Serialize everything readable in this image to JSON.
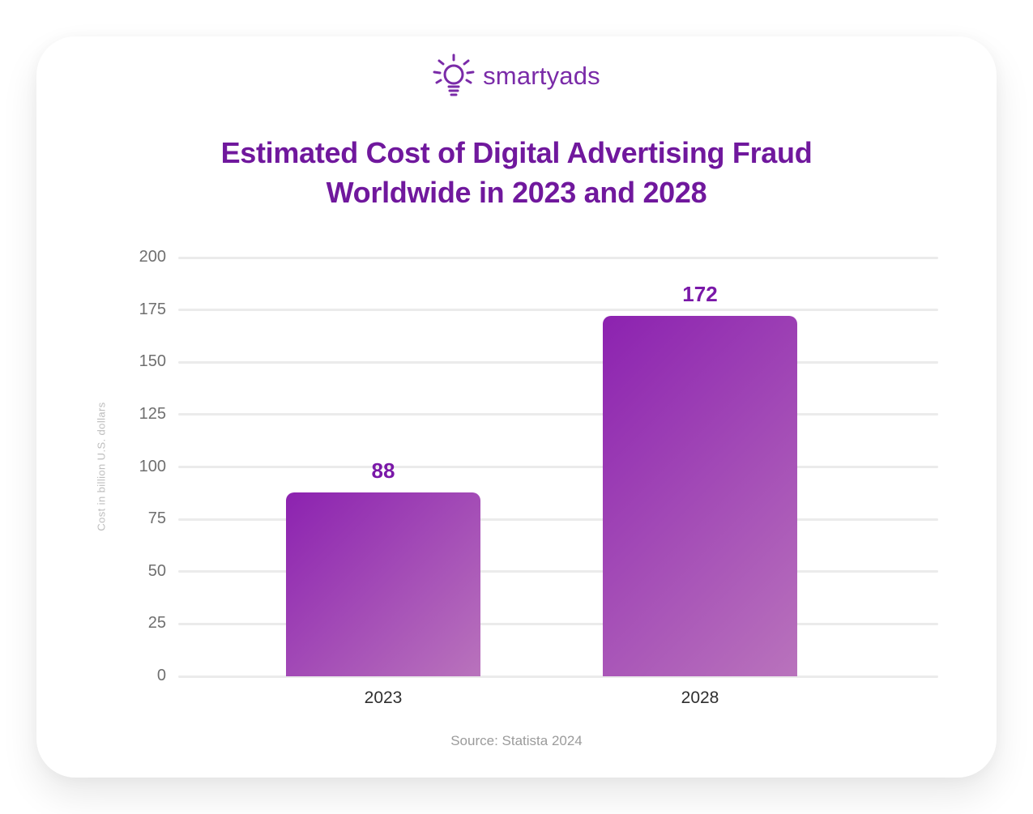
{
  "logo": {
    "text": "smartyads",
    "icon": "lightbulb-icon",
    "color": "#7A2BA8"
  },
  "title": {
    "line1": "Estimated Cost of Digital Advertising Fraud",
    "line2": "Worldwide in 2023 and 2028",
    "color": "#70189D"
  },
  "chart_data": {
    "type": "bar",
    "title": "Estimated Cost of Digital Advertising Fraud Worldwide in 2023 and 2028",
    "categories": [
      "2023",
      "2028"
    ],
    "values": [
      88,
      172
    ],
    "xlabel": "",
    "ylabel": "Cost in billion U.S. dollars",
    "ylim": [
      0,
      200
    ],
    "yticks": [
      0,
      25,
      50,
      75,
      100,
      125,
      150,
      175,
      200
    ],
    "grid": true,
    "legend": false,
    "bar_gradient_from": "#8C22B0",
    "bar_gradient_to": "#B973BC",
    "value_label_color": "#7A18A8",
    "grid_color": "#EBEBEB",
    "ytick_color": "#6F6F6F",
    "xtick_color": "#2F2F2F"
  },
  "source": {
    "text": "Source: Statista 2024"
  }
}
